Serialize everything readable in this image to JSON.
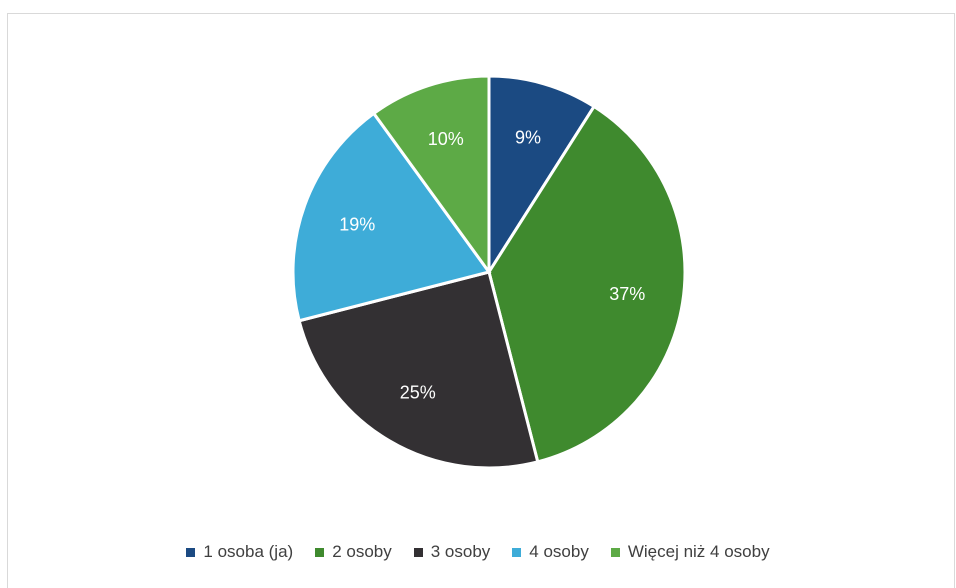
{
  "chart_data": {
    "type": "pie",
    "categories": [
      "1 osoba (ja)",
      "2 osoby",
      "3 osoby",
      "4 osoby",
      "Więcej niż 4 osoby"
    ],
    "values": [
      9,
      37,
      25,
      19,
      10
    ],
    "labels": [
      "9%",
      "37%",
      "25%",
      "19%",
      "10%"
    ],
    "colors": [
      "#1b4a82",
      "#3f8a2e",
      "#333033",
      "#3eacd8",
      "#5daa46"
    ],
    "start_angle_deg": 0,
    "direction": "clockwise",
    "legend_position": "bottom"
  }
}
